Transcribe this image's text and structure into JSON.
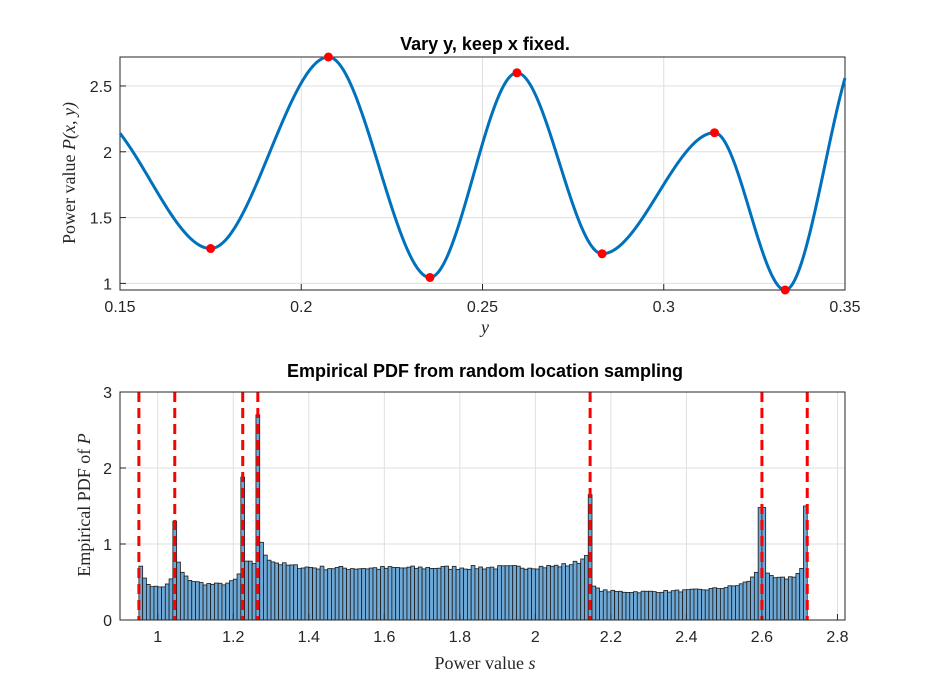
{
  "chart_data": [
    {
      "type": "line",
      "title": "Vary y, keep x fixed.",
      "xlabel": "y",
      "ylabel_prefix": "Power value ",
      "ylabel_math": "P(x, y)",
      "xlim": [
        0.15,
        0.35
      ],
      "ylim": [
        0.95,
        2.72
      ],
      "xticks": [
        0.15,
        0.2,
        0.25,
        0.3,
        0.35
      ],
      "xtick_labels": [
        "0.15",
        "0.2",
        "0.25",
        "0.3",
        "0.35"
      ],
      "yticks": [
        1,
        1.5,
        2,
        2.5
      ],
      "ytick_labels": [
        "1",
        "1.5",
        "2",
        "2.5"
      ],
      "grid": true,
      "line_color": "#0072BD",
      "marker_color": "#FF0000",
      "series": [
        {
          "name": "P(x,y)",
          "x": [
            0.15,
            0.175,
            0.2075,
            0.2355,
            0.2595,
            0.283,
            0.314,
            0.3335,
            0.35
          ],
          "y": [
            2.14,
            1.265,
            2.72,
            1.045,
            2.6,
            1.225,
            2.145,
            0.95,
            2.56
          ]
        }
      ],
      "extrema": {
        "x": [
          0.175,
          0.2075,
          0.2355,
          0.2595,
          0.283,
          0.314,
          0.3335
        ],
        "y": [
          1.265,
          2.72,
          1.045,
          2.6,
          1.225,
          2.145,
          0.95
        ]
      }
    },
    {
      "type": "bar",
      "title": "Empirical PDF from random location sampling",
      "xlabel_prefix": "Power value ",
      "xlabel_math": "s",
      "ylabel_prefix": "Empirical PDF of ",
      "ylabel_math": "P",
      "xlim": [
        0.9,
        2.82
      ],
      "ylim": [
        0,
        3
      ],
      "xticks": [
        1,
        1.2,
        1.4,
        1.6,
        1.8,
        2,
        2.2,
        2.4,
        2.6,
        2.8
      ],
      "xtick_labels": [
        "1",
        "1.2",
        "1.4",
        "1.6",
        "1.8",
        "2",
        "2.2",
        "2.4",
        "2.6",
        "2.8"
      ],
      "yticks": [
        0,
        1,
        2,
        3
      ],
      "ytick_labels": [
        "0",
        "1",
        "2",
        "3"
      ],
      "grid": true,
      "bar_color": "#6DA8D6",
      "bar_edge_color": "#1A1A1A",
      "bin_range": [
        0.95,
        2.72
      ],
      "bin_width": 0.01,
      "peaks": [
        {
          "s": 0.95,
          "value": 0.55
        },
        {
          "s": 1.045,
          "value": 1.3
        },
        {
          "s": 1.225,
          "value": 1.88
        },
        {
          "s": 1.265,
          "value": 2.7
        },
        {
          "s": 2.145,
          "value": 1.65
        },
        {
          "s": 2.6,
          "value": 1.48
        },
        {
          "s": 2.72,
          "value": 1.5
        }
      ],
      "vlines": [
        0.95,
        1.045,
        1.225,
        1.265,
        2.145,
        2.6,
        2.72
      ],
      "vline_color": "#FF0000"
    }
  ]
}
